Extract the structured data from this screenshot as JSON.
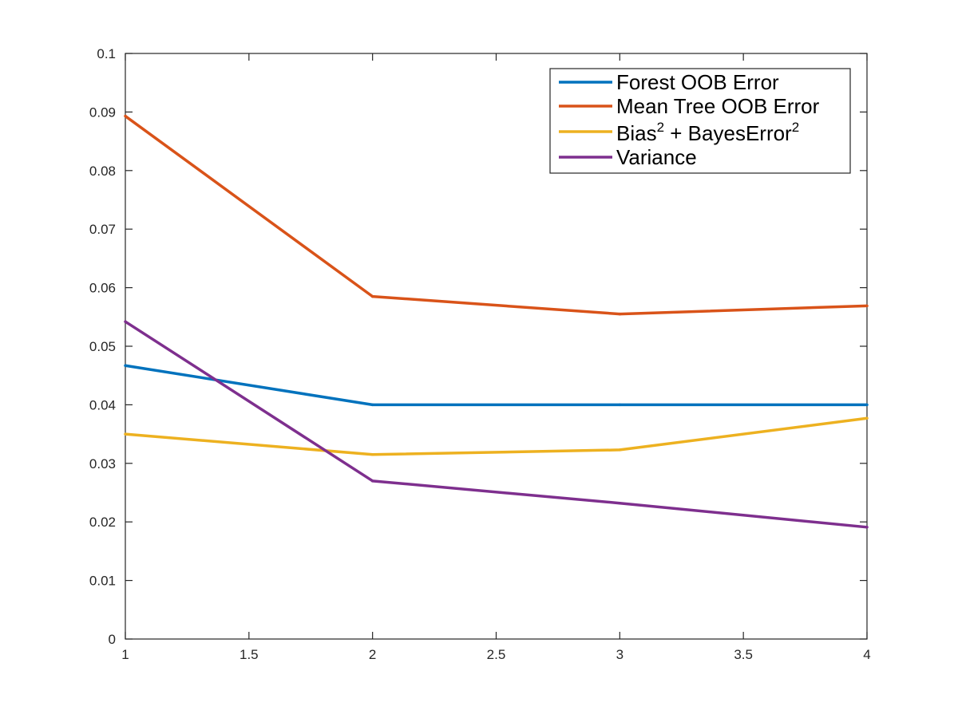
{
  "chart_data": {
    "type": "line",
    "title": "",
    "xlabel": "",
    "ylabel": "",
    "xlim": [
      1,
      4
    ],
    "ylim": [
      0,
      0.1
    ],
    "x_ticks": [
      1,
      1.5,
      2,
      2.5,
      3,
      3.5,
      4
    ],
    "x_tick_labels": [
      "1",
      "1.5",
      "2",
      "2.5",
      "3",
      "3.5",
      "4"
    ],
    "y_ticks": [
      0,
      0.01,
      0.02,
      0.03,
      0.04,
      0.05,
      0.06,
      0.07,
      0.08,
      0.09,
      0.1
    ],
    "y_tick_labels": [
      "0",
      "0.01",
      "0.02",
      "0.03",
      "0.04",
      "0.05",
      "0.06",
      "0.07",
      "0.08",
      "0.09",
      "0.1"
    ],
    "grid": false,
    "legend_position": "top-right",
    "x": [
      1,
      2,
      3,
      4
    ],
    "series": [
      {
        "name": "Forest OOB Error",
        "legend": {
          "text": "Forest OOB Error"
        },
        "color": "#0072BD",
        "values": [
          0.0467,
          0.04,
          0.04,
          0.04
        ]
      },
      {
        "name": "Mean Tree OOB Error",
        "legend": {
          "text": "Mean Tree OOB Error"
        },
        "color": "#D95319",
        "values": [
          0.0893,
          0.0585,
          0.0555,
          0.0569
        ]
      },
      {
        "name": "Bias2 + BayesError2",
        "legend": {
          "part1": "Bias",
          "sup1": "2",
          "part2": " + BayesError",
          "sup2": "2"
        },
        "color": "#EDB120",
        "values": [
          0.035,
          0.0315,
          0.0323,
          0.0377
        ]
      },
      {
        "name": "Variance",
        "legend": {
          "text": "Variance"
        },
        "color": "#7E2F8E",
        "values": [
          0.0542,
          0.027,
          0.0232,
          0.0191
        ]
      }
    ]
  }
}
